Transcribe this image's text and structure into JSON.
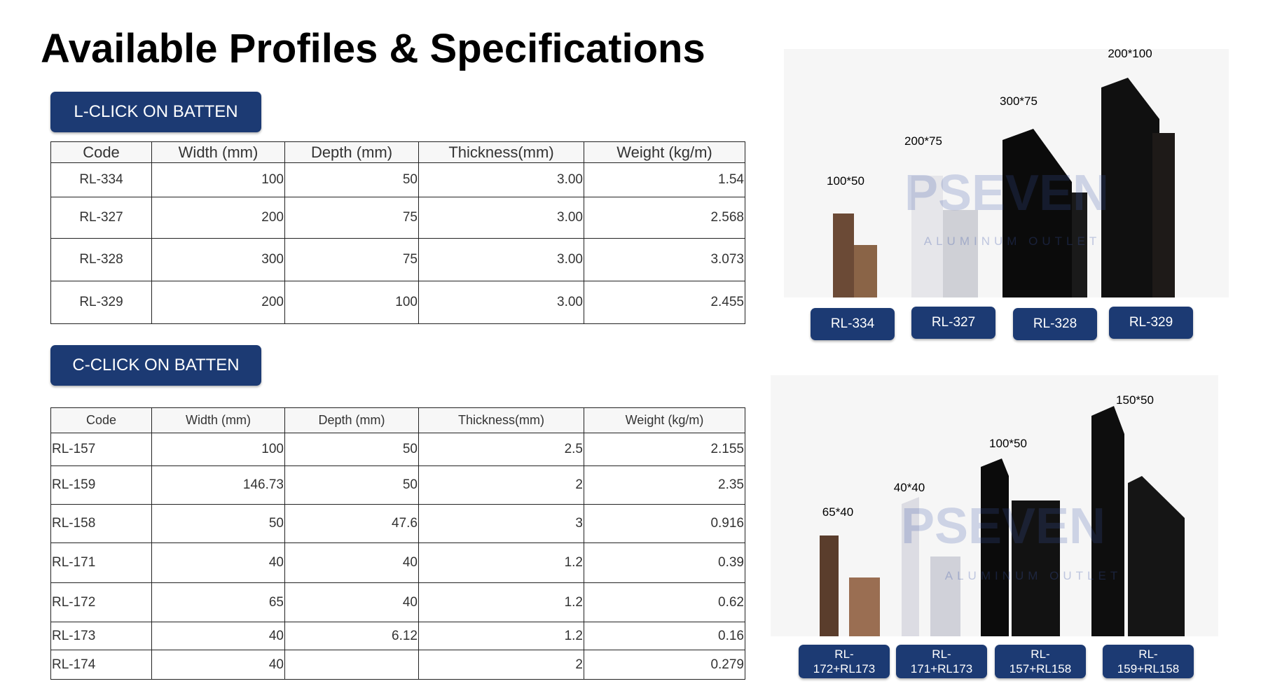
{
  "title": "Available Profiles & Specifications",
  "sections": [
    {
      "label": "L-CLICK ON BATTEN",
      "table": {
        "header": [
          "Code",
          "Width (mm)",
          "Depth (mm)",
          "Thickness(mm)",
          "Weight (kg/m)"
        ],
        "rows": [
          [
            "RL-334",
            "100",
            "50",
            "3.00",
            "1.54"
          ],
          [
            "RL-327",
            "200",
            "75",
            "3.00",
            "2.568"
          ],
          [
            "RL-328",
            "300",
            "75",
            "3.00",
            "3.073"
          ],
          [
            "RL-329",
            "200",
            "100",
            "3.00",
            "2.455"
          ]
        ]
      }
    },
    {
      "label": "C-CLICK ON BATTEN",
      "table": {
        "header": [
          "Code",
          "Width (mm)",
          "Depth (mm)",
          "Thickness(mm)",
          "Weight (kg/m)"
        ],
        "rows": [
          [
            "RL-157",
            "100",
            "50",
            "2.5",
            "2.155"
          ],
          [
            "RL-159",
            "146.73",
            "50",
            "2",
            "2.35"
          ],
          [
            "RL-158",
            "50",
            "47.6",
            "3",
            "0.916"
          ],
          [
            "RL-171",
            "40",
            "40",
            "1.2",
            "0.39"
          ],
          [
            "RL-172",
            "65",
            "40",
            "1.2",
            "0.62"
          ],
          [
            "RL-173",
            "40",
            "6.12",
            "1.2",
            "0.16"
          ],
          [
            "RL-174",
            "40",
            null,
            "2",
            "0.279"
          ]
        ]
      }
    }
  ],
  "panels": [
    {
      "dimensions": [
        "100*50",
        "200*75",
        "300*75",
        "200*100"
      ],
      "codes": [
        "RL-334",
        "RL-327",
        "RL-328",
        "RL-329"
      ],
      "watermark": [
        "PSEVEN",
        "ALUMINUM OUTLET"
      ]
    },
    {
      "dimensions": [
        "65*40",
        "40*40",
        "100*50",
        "150*50"
      ],
      "codes": [
        "RL-172+RL173",
        "RL-171+RL173",
        "RL-157+RL158",
        "RL-159+RL158"
      ],
      "watermark": [
        "PSEVEN",
        "ALUMINUM OUTLET"
      ]
    }
  ]
}
